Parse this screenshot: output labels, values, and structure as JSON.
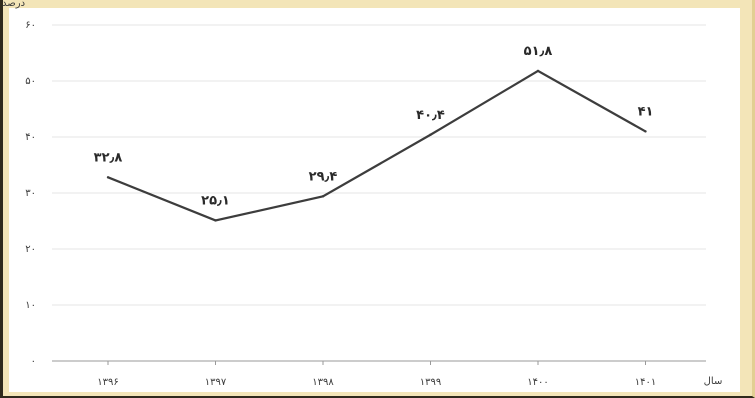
{
  "chart_data": {
    "type": "line",
    "ylabel": "درصد",
    "xlabel": "سال",
    "ylim": [
      0,
      60
    ],
    "yticks": [
      0,
      10,
      20,
      30,
      40,
      50,
      60
    ],
    "ytick_labels": [
      "۰",
      "۱۰",
      "۲۰",
      "۳۰",
      "۴۰",
      "۵۰",
      "۶۰"
    ],
    "categories": [
      "۱۳۹۶",
      "۱۳۹۷",
      "۱۳۹۸",
      "۱۳۹۹",
      "۱۴۰۰",
      "۱۴۰۱"
    ],
    "values": [
      32.8,
      25.1,
      29.4,
      40.4,
      51.8,
      41
    ],
    "value_labels": [
      "۳۲٫۸",
      "۲۵٫۱",
      "۲۹٫۴",
      "۴۰٫۴",
      "۵۱٫۸",
      "۴۱"
    ],
    "grid": true,
    "line_color": "#3d3d3d",
    "grid_color": "#e6e6e6",
    "background_color": "#f3e5b8"
  }
}
